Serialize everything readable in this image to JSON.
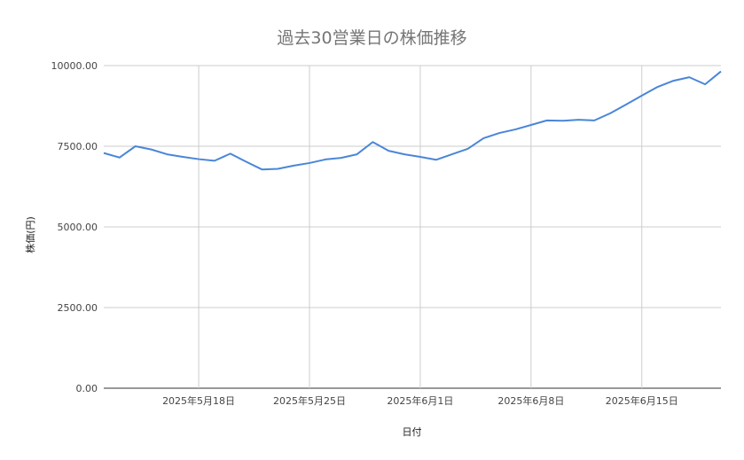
{
  "chart_data": {
    "type": "line",
    "title": "過去30営業日の株価推移",
    "xlabel": "日付",
    "ylabel": "株価(円)",
    "ylim": [
      0,
      10000
    ],
    "yticks": [
      "0.00",
      "2500.00",
      "5000.00",
      "7500.00",
      "10000.00"
    ],
    "xlim": [
      "2025-05-12",
      "2025-06-20"
    ],
    "xticks": [
      {
        "date": "2025-05-18",
        "label": "2025年5月18日"
      },
      {
        "date": "2025-05-25",
        "label": "2025年5月25日"
      },
      {
        "date": "2025-06-01",
        "label": "2025年6月1日"
      },
      {
        "date": "2025-06-08",
        "label": "2025年6月8日"
      },
      {
        "date": "2025-06-15",
        "label": "2025年6月15日"
      }
    ],
    "grid": true,
    "series_color": "#4a86d8",
    "start_date": "2025-05-12",
    "values": [
      7290,
      7150,
      7500,
      7400,
      7250,
      7170,
      7100,
      7050,
      7270,
      7020,
      6780,
      6800,
      6900,
      6980,
      7090,
      7140,
      7250,
      7630,
      7360,
      7250,
      7170,
      7080,
      7250,
      7420,
      7750,
      7910,
      8020,
      8160,
      8300,
      8290,
      8320,
      8300,
      8520,
      8790,
      9070,
      9340,
      9530,
      9640,
      9420,
      9820
    ]
  }
}
